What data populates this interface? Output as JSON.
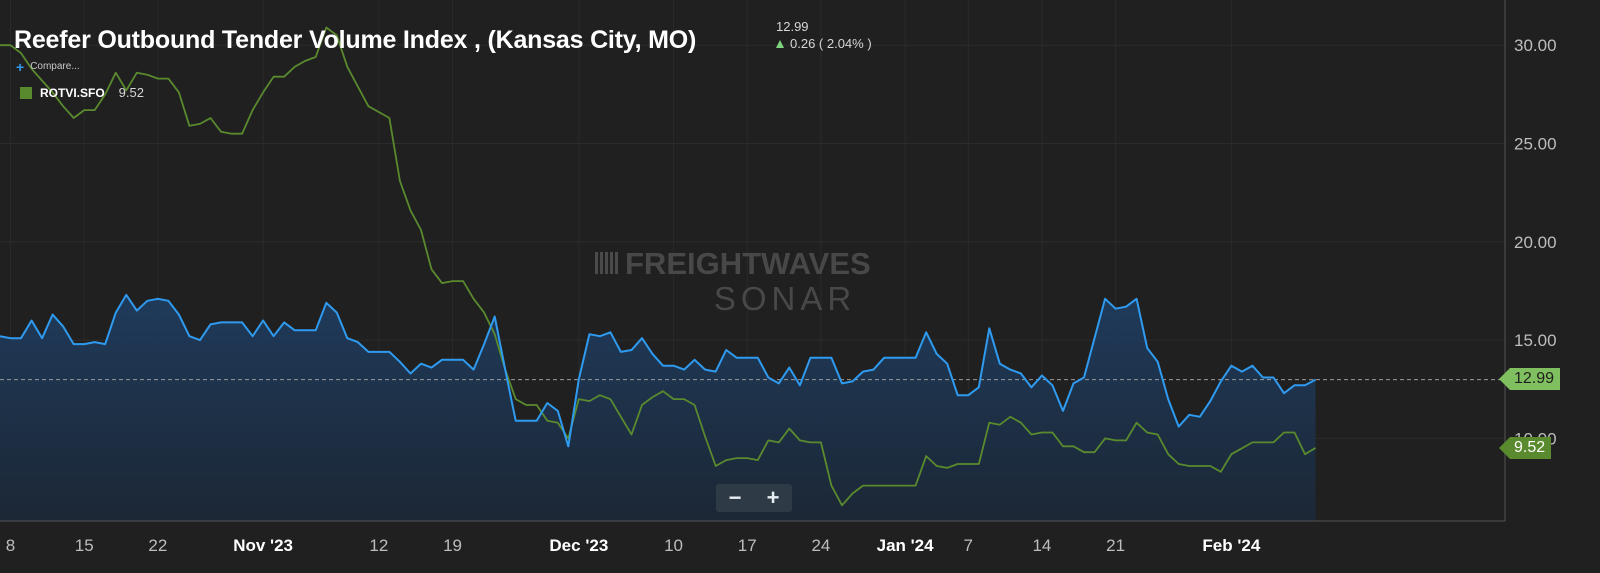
{
  "header": {
    "title": "Reefer Outbound Tender Volume Index , (Kansas City, MO)",
    "last_value": "12.99",
    "change": "0.26 ( 2.04% )",
    "compare_label": "Compare...",
    "comparison": {
      "name": "ROTVI.SFO",
      "value": "9.52"
    }
  },
  "watermark": {
    "line1": "FREIGHTWAVES",
    "line2": "SONAR"
  },
  "zoom": {
    "minus": "−",
    "plus": "+"
  },
  "colors": {
    "primary": "#2f9bf0",
    "comparison": "#5a8a2e",
    "background": "#202020",
    "up": "#7fd57f"
  },
  "chart_data": {
    "type": "line",
    "title": "Reefer Outbound Tender Volume Index , (Kansas City, MO)",
    "x_start": "2023-10-07",
    "x_end": "2024-02-27",
    "xticks": [
      {
        "label": "8",
        "date": "2023-10-08"
      },
      {
        "label": "15",
        "date": "2023-10-15"
      },
      {
        "label": "22",
        "date": "2023-10-22"
      },
      {
        "label": "Nov '23",
        "date": "2023-11-01",
        "bold": true
      },
      {
        "label": "12",
        "date": "2023-11-12"
      },
      {
        "label": "19",
        "date": "2023-11-19"
      },
      {
        "label": "Dec '23",
        "date": "2023-12-01",
        "bold": true
      },
      {
        "label": "10",
        "date": "2023-12-10"
      },
      {
        "label": "17",
        "date": "2023-12-17"
      },
      {
        "label": "24",
        "date": "2023-12-24"
      },
      {
        "label": "Jan '24",
        "date": "2024-01-01",
        "bold": true
      },
      {
        "label": "7",
        "date": "2024-01-07"
      },
      {
        "label": "14",
        "date": "2024-01-14"
      },
      {
        "label": "21",
        "date": "2024-01-21"
      },
      {
        "label": "Feb '24",
        "date": "2024-02-01",
        "bold": true
      }
    ],
    "yticks": [
      "10.00",
      "15.00",
      "20.00",
      "25.00",
      "30.00"
    ],
    "ylim": [
      5.8,
      32.3
    ],
    "last_price_line": 12.99,
    "series": [
      {
        "name": "Reefer Outbound Tender Volume Index , (Kansas City, MO)",
        "color": "#2f9bf0",
        "area": true,
        "points": [
          [
            "2023-10-07",
            15.2
          ],
          [
            "2023-10-08",
            15.1
          ],
          [
            "2023-10-09",
            15.1
          ],
          [
            "2023-10-10",
            16.0
          ],
          [
            "2023-10-11",
            15.1
          ],
          [
            "2023-10-12",
            16.3
          ],
          [
            "2023-10-13",
            15.7
          ],
          [
            "2023-10-14",
            14.8
          ],
          [
            "2023-10-15",
            14.8
          ],
          [
            "2023-10-16",
            14.9
          ],
          [
            "2023-10-17",
            14.8
          ],
          [
            "2023-10-18",
            16.4
          ],
          [
            "2023-10-19",
            17.3
          ],
          [
            "2023-10-20",
            16.5
          ],
          [
            "2023-10-21",
            17.0
          ],
          [
            "2023-10-22",
            17.1
          ],
          [
            "2023-10-23",
            17.0
          ],
          [
            "2023-10-24",
            16.3
          ],
          [
            "2023-10-25",
            15.2
          ],
          [
            "2023-10-26",
            15.0
          ],
          [
            "2023-10-27",
            15.8
          ],
          [
            "2023-10-28",
            15.9
          ],
          [
            "2023-10-29",
            15.9
          ],
          [
            "2023-10-30",
            15.9
          ],
          [
            "2023-10-31",
            15.2
          ],
          [
            "2023-11-01",
            16.0
          ],
          [
            "2023-11-02",
            15.2
          ],
          [
            "2023-11-03",
            15.9
          ],
          [
            "2023-11-04",
            15.5
          ],
          [
            "2023-11-05",
            15.5
          ],
          [
            "2023-11-06",
            15.5
          ],
          [
            "2023-11-07",
            16.9
          ],
          [
            "2023-11-08",
            16.4
          ],
          [
            "2023-11-09",
            15.1
          ],
          [
            "2023-11-10",
            14.9
          ],
          [
            "2023-11-11",
            14.4
          ],
          [
            "2023-11-12",
            14.4
          ],
          [
            "2023-11-13",
            14.4
          ],
          [
            "2023-11-14",
            13.9
          ],
          [
            "2023-11-15",
            13.3
          ],
          [
            "2023-11-16",
            13.8
          ],
          [
            "2023-11-17",
            13.6
          ],
          [
            "2023-11-18",
            14.0
          ],
          [
            "2023-11-19",
            14.0
          ],
          [
            "2023-11-20",
            14.0
          ],
          [
            "2023-11-21",
            13.5
          ],
          [
            "2023-11-22",
            14.8
          ],
          [
            "2023-11-23",
            16.2
          ],
          [
            "2023-11-24",
            13.5
          ],
          [
            "2023-11-25",
            10.9
          ],
          [
            "2023-11-26",
            10.9
          ],
          [
            "2023-11-27",
            10.9
          ],
          [
            "2023-11-28",
            11.8
          ],
          [
            "2023-11-29",
            11.4
          ],
          [
            "2023-11-30",
            9.6
          ],
          [
            "2023-12-01",
            13.0
          ],
          [
            "2023-12-02",
            15.3
          ],
          [
            "2023-12-03",
            15.2
          ],
          [
            "2023-12-04",
            15.4
          ],
          [
            "2023-12-05",
            14.4
          ],
          [
            "2023-12-06",
            14.5
          ],
          [
            "2023-12-07",
            15.1
          ],
          [
            "2023-12-08",
            14.3
          ],
          [
            "2023-12-09",
            13.7
          ],
          [
            "2023-12-10",
            13.7
          ],
          [
            "2023-12-11",
            13.5
          ],
          [
            "2023-12-12",
            14.0
          ],
          [
            "2023-12-13",
            13.5
          ],
          [
            "2023-12-14",
            13.4
          ],
          [
            "2023-12-15",
            14.5
          ],
          [
            "2023-12-16",
            14.1
          ],
          [
            "2023-12-17",
            14.1
          ],
          [
            "2023-12-18",
            14.1
          ],
          [
            "2023-12-19",
            13.1
          ],
          [
            "2023-12-20",
            12.8
          ],
          [
            "2023-12-21",
            13.6
          ],
          [
            "2023-12-22",
            12.7
          ],
          [
            "2023-12-23",
            14.1
          ],
          [
            "2023-12-24",
            14.1
          ],
          [
            "2023-12-25",
            14.1
          ],
          [
            "2023-12-26",
            12.8
          ],
          [
            "2023-12-27",
            12.9
          ],
          [
            "2023-12-28",
            13.4
          ],
          [
            "2023-12-29",
            13.5
          ],
          [
            "2023-12-30",
            14.1
          ],
          [
            "2023-12-31",
            14.1
          ],
          [
            "2024-01-01",
            14.1
          ],
          [
            "2024-01-02",
            14.1
          ],
          [
            "2024-01-03",
            15.4
          ],
          [
            "2024-01-04",
            14.3
          ],
          [
            "2024-01-05",
            13.8
          ],
          [
            "2024-01-06",
            12.2
          ],
          [
            "2024-01-07",
            12.2
          ],
          [
            "2024-01-08",
            12.6
          ],
          [
            "2024-01-09",
            15.6
          ],
          [
            "2024-01-10",
            13.8
          ],
          [
            "2024-01-11",
            13.5
          ],
          [
            "2024-01-12",
            13.3
          ],
          [
            "2024-01-13",
            12.6
          ],
          [
            "2024-01-14",
            13.2
          ],
          [
            "2024-01-15",
            12.7
          ],
          [
            "2024-01-16",
            11.4
          ],
          [
            "2024-01-17",
            12.8
          ],
          [
            "2024-01-18",
            13.1
          ],
          [
            "2024-01-19",
            15.1
          ],
          [
            "2024-01-20",
            17.1
          ],
          [
            "2024-01-21",
            16.6
          ],
          [
            "2024-01-22",
            16.7
          ],
          [
            "2024-01-23",
            17.1
          ],
          [
            "2024-01-24",
            14.6
          ],
          [
            "2024-01-25",
            13.9
          ],
          [
            "2024-01-26",
            12.0
          ],
          [
            "2024-01-27",
            10.6
          ],
          [
            "2024-01-28",
            11.2
          ],
          [
            "2024-01-29",
            11.1
          ],
          [
            "2024-01-30",
            11.9
          ],
          [
            "2024-01-31",
            12.9
          ],
          [
            "2024-02-01",
            13.7
          ],
          [
            "2024-02-02",
            13.4
          ],
          [
            "2024-02-03",
            13.7
          ],
          [
            "2024-02-04",
            13.1
          ],
          [
            "2024-02-05",
            13.1
          ],
          [
            "2024-02-06",
            12.3
          ],
          [
            "2024-02-07",
            12.7
          ],
          [
            "2024-02-08",
            12.7
          ],
          [
            "2024-02-09",
            12.99
          ]
        ]
      },
      {
        "name": "ROTVI.SFO",
        "color": "#5a8a2e",
        "points": [
          [
            "2023-10-07",
            30.0
          ],
          [
            "2023-10-08",
            30.0
          ],
          [
            "2023-10-09",
            29.6
          ],
          [
            "2023-10-10",
            28.8
          ],
          [
            "2023-10-11",
            28.2
          ],
          [
            "2023-10-12",
            27.6
          ],
          [
            "2023-10-13",
            26.9
          ],
          [
            "2023-10-14",
            26.3
          ],
          [
            "2023-10-15",
            26.7
          ],
          [
            "2023-10-16",
            26.7
          ],
          [
            "2023-10-17",
            27.5
          ],
          [
            "2023-10-18",
            28.6
          ],
          [
            "2023-10-19",
            27.7
          ],
          [
            "2023-10-20",
            28.6
          ],
          [
            "2023-10-21",
            28.5
          ],
          [
            "2023-10-22",
            28.3
          ],
          [
            "2023-10-23",
            28.3
          ],
          [
            "2023-10-24",
            27.6
          ],
          [
            "2023-10-25",
            25.9
          ],
          [
            "2023-10-26",
            26.0
          ],
          [
            "2023-10-27",
            26.3
          ],
          [
            "2023-10-28",
            25.6
          ],
          [
            "2023-10-29",
            25.5
          ],
          [
            "2023-10-30",
            25.5
          ],
          [
            "2023-10-31",
            26.7
          ],
          [
            "2023-11-01",
            27.6
          ],
          [
            "2023-11-02",
            28.4
          ],
          [
            "2023-11-03",
            28.4
          ],
          [
            "2023-11-04",
            28.9
          ],
          [
            "2023-11-05",
            29.2
          ],
          [
            "2023-11-06",
            29.4
          ],
          [
            "2023-11-07",
            30.9
          ],
          [
            "2023-11-08",
            30.5
          ],
          [
            "2023-11-09",
            28.9
          ],
          [
            "2023-11-10",
            27.9
          ],
          [
            "2023-11-11",
            26.9
          ],
          [
            "2023-11-12",
            26.6
          ],
          [
            "2023-11-13",
            26.3
          ],
          [
            "2023-11-14",
            23.1
          ],
          [
            "2023-11-15",
            21.6
          ],
          [
            "2023-11-16",
            20.6
          ],
          [
            "2023-11-17",
            18.6
          ],
          [
            "2023-11-18",
            17.9
          ],
          [
            "2023-11-19",
            18.0
          ],
          [
            "2023-11-20",
            18.0
          ],
          [
            "2023-11-21",
            17.1
          ],
          [
            "2023-11-22",
            16.4
          ],
          [
            "2023-11-23",
            15.3
          ],
          [
            "2023-11-24",
            13.5
          ],
          [
            "2023-11-25",
            12.0
          ],
          [
            "2023-11-26",
            11.7
          ],
          [
            "2023-11-27",
            11.7
          ],
          [
            "2023-11-28",
            10.9
          ],
          [
            "2023-11-29",
            10.8
          ],
          [
            "2023-11-30",
            10.0
          ],
          [
            "2023-12-01",
            12.0
          ],
          [
            "2023-12-02",
            11.9
          ],
          [
            "2023-12-03",
            12.2
          ],
          [
            "2023-12-04",
            12.0
          ],
          [
            "2023-12-05",
            11.1
          ],
          [
            "2023-12-06",
            10.2
          ],
          [
            "2023-12-07",
            11.7
          ],
          [
            "2023-12-08",
            12.1
          ],
          [
            "2023-12-09",
            12.4
          ],
          [
            "2023-12-10",
            12.0
          ],
          [
            "2023-12-11",
            12.0
          ],
          [
            "2023-12-12",
            11.7
          ],
          [
            "2023-12-13",
            10.1
          ],
          [
            "2023-12-14",
            8.6
          ],
          [
            "2023-12-15",
            8.9
          ],
          [
            "2023-12-16",
            9.0
          ],
          [
            "2023-12-17",
            9.0
          ],
          [
            "2023-12-18",
            8.9
          ],
          [
            "2023-12-19",
            9.9
          ],
          [
            "2023-12-20",
            9.8
          ],
          [
            "2023-12-21",
            10.5
          ],
          [
            "2023-12-22",
            9.9
          ],
          [
            "2023-12-23",
            9.8
          ],
          [
            "2023-12-24",
            9.8
          ],
          [
            "2023-12-25",
            7.6
          ],
          [
            "2023-12-26",
            6.6
          ],
          [
            "2023-12-27",
            7.2
          ],
          [
            "2023-12-28",
            7.6
          ],
          [
            "2023-12-29",
            7.6
          ],
          [
            "2023-12-30",
            7.6
          ],
          [
            "2023-12-31",
            7.6
          ],
          [
            "2024-01-01",
            7.6
          ],
          [
            "2024-01-02",
            7.6
          ],
          [
            "2024-01-03",
            9.1
          ],
          [
            "2024-01-04",
            8.6
          ],
          [
            "2024-01-05",
            8.5
          ],
          [
            "2024-01-06",
            8.7
          ],
          [
            "2024-01-07",
            8.7
          ],
          [
            "2024-01-08",
            8.7
          ],
          [
            "2024-01-09",
            10.8
          ],
          [
            "2024-01-10",
            10.7
          ],
          [
            "2024-01-11",
            11.1
          ],
          [
            "2024-01-12",
            10.8
          ],
          [
            "2024-01-13",
            10.2
          ],
          [
            "2024-01-14",
            10.3
          ],
          [
            "2024-01-15",
            10.3
          ],
          [
            "2024-01-16",
            9.6
          ],
          [
            "2024-01-17",
            9.6
          ],
          [
            "2024-01-18",
            9.3
          ],
          [
            "2024-01-19",
            9.3
          ],
          [
            "2024-01-20",
            10.0
          ],
          [
            "2024-01-21",
            9.9
          ],
          [
            "2024-01-22",
            9.9
          ],
          [
            "2024-01-23",
            10.8
          ],
          [
            "2024-01-24",
            10.3
          ],
          [
            "2024-01-25",
            10.2
          ],
          [
            "2024-01-26",
            9.2
          ],
          [
            "2024-01-27",
            8.7
          ],
          [
            "2024-01-28",
            8.6
          ],
          [
            "2024-01-29",
            8.6
          ],
          [
            "2024-01-30",
            8.6
          ],
          [
            "2024-01-31",
            8.3
          ],
          [
            "2024-02-01",
            9.2
          ],
          [
            "2024-02-02",
            9.5
          ],
          [
            "2024-02-03",
            9.8
          ],
          [
            "2024-02-04",
            9.8
          ],
          [
            "2024-02-05",
            9.8
          ],
          [
            "2024-02-06",
            10.3
          ],
          [
            "2024-02-07",
            10.3
          ],
          [
            "2024-02-08",
            9.2
          ],
          [
            "2024-02-09",
            9.52
          ]
        ]
      }
    ],
    "grid": true,
    "legend": "top-left"
  }
}
